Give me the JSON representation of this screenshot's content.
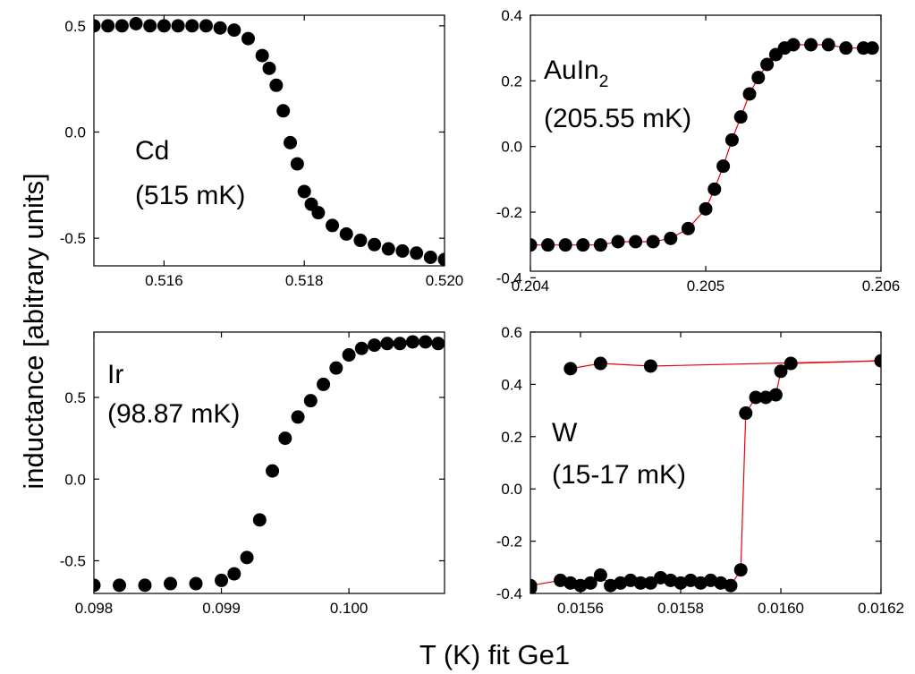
{
  "figure": {
    "ylabel": "inductance [abitrary units]",
    "xlabel": "T (K) fit Ge1"
  },
  "chart_data": [
    {
      "type": "scatter",
      "panel": "top-left",
      "label_line1": "Cd",
      "label_line2": "(515 mK)",
      "xlim": [
        0.515,
        0.52
      ],
      "ylim": [
        -0.63,
        0.55
      ],
      "xticks": [
        0.516,
        0.518,
        0.52
      ],
      "xtick_labels": [
        "0.516",
        "0.518",
        "0.520"
      ],
      "yticks": [
        -0.5,
        0.0,
        0.5
      ],
      "ytick_labels": [
        "-0.5",
        "0.0",
        "0.5"
      ],
      "connect": false,
      "points": [
        [
          0.515,
          0.5
        ],
        [
          0.5152,
          0.5
        ],
        [
          0.5154,
          0.5
        ],
        [
          0.5156,
          0.51
        ],
        [
          0.5158,
          0.5
        ],
        [
          0.516,
          0.5
        ],
        [
          0.5162,
          0.5
        ],
        [
          0.5164,
          0.5
        ],
        [
          0.5166,
          0.5
        ],
        [
          0.5168,
          0.49
        ],
        [
          0.517,
          0.48
        ],
        [
          0.5172,
          0.44
        ],
        [
          0.5174,
          0.36
        ],
        [
          0.5175,
          0.3
        ],
        [
          0.5176,
          0.22
        ],
        [
          0.5177,
          0.1
        ],
        [
          0.5178,
          -0.05
        ],
        [
          0.5179,
          -0.15
        ],
        [
          0.518,
          -0.28
        ],
        [
          0.5181,
          -0.34
        ],
        [
          0.5182,
          -0.38
        ],
        [
          0.5184,
          -0.44
        ],
        [
          0.5186,
          -0.48
        ],
        [
          0.5188,
          -0.51
        ],
        [
          0.519,
          -0.53
        ],
        [
          0.5192,
          -0.55
        ],
        [
          0.5194,
          -0.56
        ],
        [
          0.5196,
          -0.57
        ],
        [
          0.5198,
          -0.59
        ],
        [
          0.52,
          -0.6
        ]
      ],
      "color": "#000000"
    },
    {
      "type": "scatter",
      "panel": "top-right",
      "label_line1": "AuIn",
      "label_sub": "2",
      "label_line2": "(205.55 mK)",
      "xlim": [
        0.204,
        0.206
      ],
      "ylim": [
        -0.38,
        0.4
      ],
      "xticks": [
        0.204,
        0.205,
        0.206
      ],
      "xtick_labels": [
        "0.204",
        "0.205",
        "0.206"
      ],
      "yticks": [
        -0.4,
        -0.2,
        0.0,
        0.2,
        0.4
      ],
      "ytick_labels": [
        "-0.4",
        "-0.2",
        "0.0",
        "0.2",
        "0.4"
      ],
      "connect": true,
      "points": [
        [
          0.204,
          -0.3
        ],
        [
          0.2041,
          -0.3
        ],
        [
          0.2042,
          -0.3
        ],
        [
          0.2043,
          -0.3
        ],
        [
          0.2044,
          -0.3
        ],
        [
          0.2045,
          -0.29
        ],
        [
          0.2046,
          -0.29
        ],
        [
          0.2047,
          -0.29
        ],
        [
          0.2048,
          -0.28
        ],
        [
          0.2049,
          -0.25
        ],
        [
          0.205,
          -0.19
        ],
        [
          0.20505,
          -0.13
        ],
        [
          0.2051,
          -0.06
        ],
        [
          0.20515,
          0.02
        ],
        [
          0.2052,
          0.09
        ],
        [
          0.20525,
          0.16
        ],
        [
          0.2053,
          0.21
        ],
        [
          0.20535,
          0.25
        ],
        [
          0.2054,
          0.28
        ],
        [
          0.20545,
          0.3
        ],
        [
          0.2055,
          0.31
        ],
        [
          0.2056,
          0.31
        ],
        [
          0.2057,
          0.31
        ],
        [
          0.2058,
          0.3
        ],
        [
          0.2059,
          0.3
        ],
        [
          0.20595,
          0.3
        ]
      ],
      "color": "#000000",
      "line_color": "#e8000b"
    },
    {
      "type": "scatter",
      "panel": "bottom-left",
      "label_line1": "Ir",
      "label_line2": "(98.87 mK)",
      "xlim": [
        0.098,
        0.10075
      ],
      "ylim": [
        -0.7,
        0.9
      ],
      "xticks": [
        0.098,
        0.099,
        0.1
      ],
      "xtick_labels": [
        "0.098",
        "0.099",
        "0.100"
      ],
      "yticks": [
        -0.5,
        0.0,
        0.5
      ],
      "ytick_labels": [
        "-0.5",
        "0.0",
        "0.5"
      ],
      "connect": false,
      "points": [
        [
          0.098,
          -0.65
        ],
        [
          0.0982,
          -0.65
        ],
        [
          0.0984,
          -0.65
        ],
        [
          0.0986,
          -0.64
        ],
        [
          0.0988,
          -0.64
        ],
        [
          0.099,
          -0.62
        ],
        [
          0.0991,
          -0.58
        ],
        [
          0.0992,
          -0.48
        ],
        [
          0.0993,
          -0.25
        ],
        [
          0.0994,
          0.05
        ],
        [
          0.0995,
          0.25
        ],
        [
          0.0996,
          0.38
        ],
        [
          0.0997,
          0.48
        ],
        [
          0.0998,
          0.58
        ],
        [
          0.0999,
          0.68
        ],
        [
          0.1,
          0.76
        ],
        [
          0.1001,
          0.8
        ],
        [
          0.1002,
          0.82
        ],
        [
          0.1003,
          0.83
        ],
        [
          0.1004,
          0.83
        ],
        [
          0.1005,
          0.84
        ],
        [
          0.1006,
          0.84
        ],
        [
          0.1007,
          0.83
        ]
      ],
      "color": "#000000"
    },
    {
      "type": "scatter",
      "panel": "bottom-right",
      "label_line1": "W",
      "label_line2": "(15-17 mK)",
      "xlim": [
        0.0155,
        0.0162
      ],
      "ylim": [
        -0.4,
        0.6
      ],
      "xticks": [
        0.0156,
        0.0158,
        0.016,
        0.0162
      ],
      "xtick_labels": [
        "0.0156",
        "0.0158",
        "0.0160",
        "0.0162"
      ],
      "yticks": [
        -0.4,
        -0.2,
        0.0,
        0.2,
        0.4,
        0.6
      ],
      "ytick_labels": [
        "-0.4",
        "-0.2",
        "0.0",
        "0.2",
        "0.4",
        "0.6"
      ],
      "connect": true,
      "points": [
        [
          0.0155,
          -0.38
        ],
        [
          0.0155,
          -0.37
        ],
        [
          0.01556,
          -0.35
        ],
        [
          0.01558,
          -0.36
        ],
        [
          0.0156,
          -0.37
        ],
        [
          0.01562,
          -0.36
        ],
        [
          0.01564,
          -0.33
        ],
        [
          0.01566,
          -0.37
        ],
        [
          0.01568,
          -0.36
        ],
        [
          0.0157,
          -0.35
        ],
        [
          0.01572,
          -0.36
        ],
        [
          0.01574,
          -0.36
        ],
        [
          0.01576,
          -0.34
        ],
        [
          0.01578,
          -0.35
        ],
        [
          0.0158,
          -0.36
        ],
        [
          0.01582,
          -0.35
        ],
        [
          0.01584,
          -0.36
        ],
        [
          0.01586,
          -0.35
        ],
        [
          0.01588,
          -0.36
        ],
        [
          0.0159,
          -0.37
        ],
        [
          0.01592,
          -0.31
        ],
        [
          0.01593,
          0.29
        ],
        [
          0.01595,
          0.35
        ],
        [
          0.01597,
          0.35
        ],
        [
          0.01599,
          0.36
        ],
        [
          0.016,
          0.45
        ],
        [
          0.01602,
          0.48
        ],
        [
          0.0162,
          0.49
        ],
        [
          0.01574,
          0.47
        ],
        [
          0.01564,
          0.48
        ],
        [
          0.01558,
          0.46
        ]
      ],
      "color": "#000000",
      "line_color": "#e8000b"
    }
  ]
}
